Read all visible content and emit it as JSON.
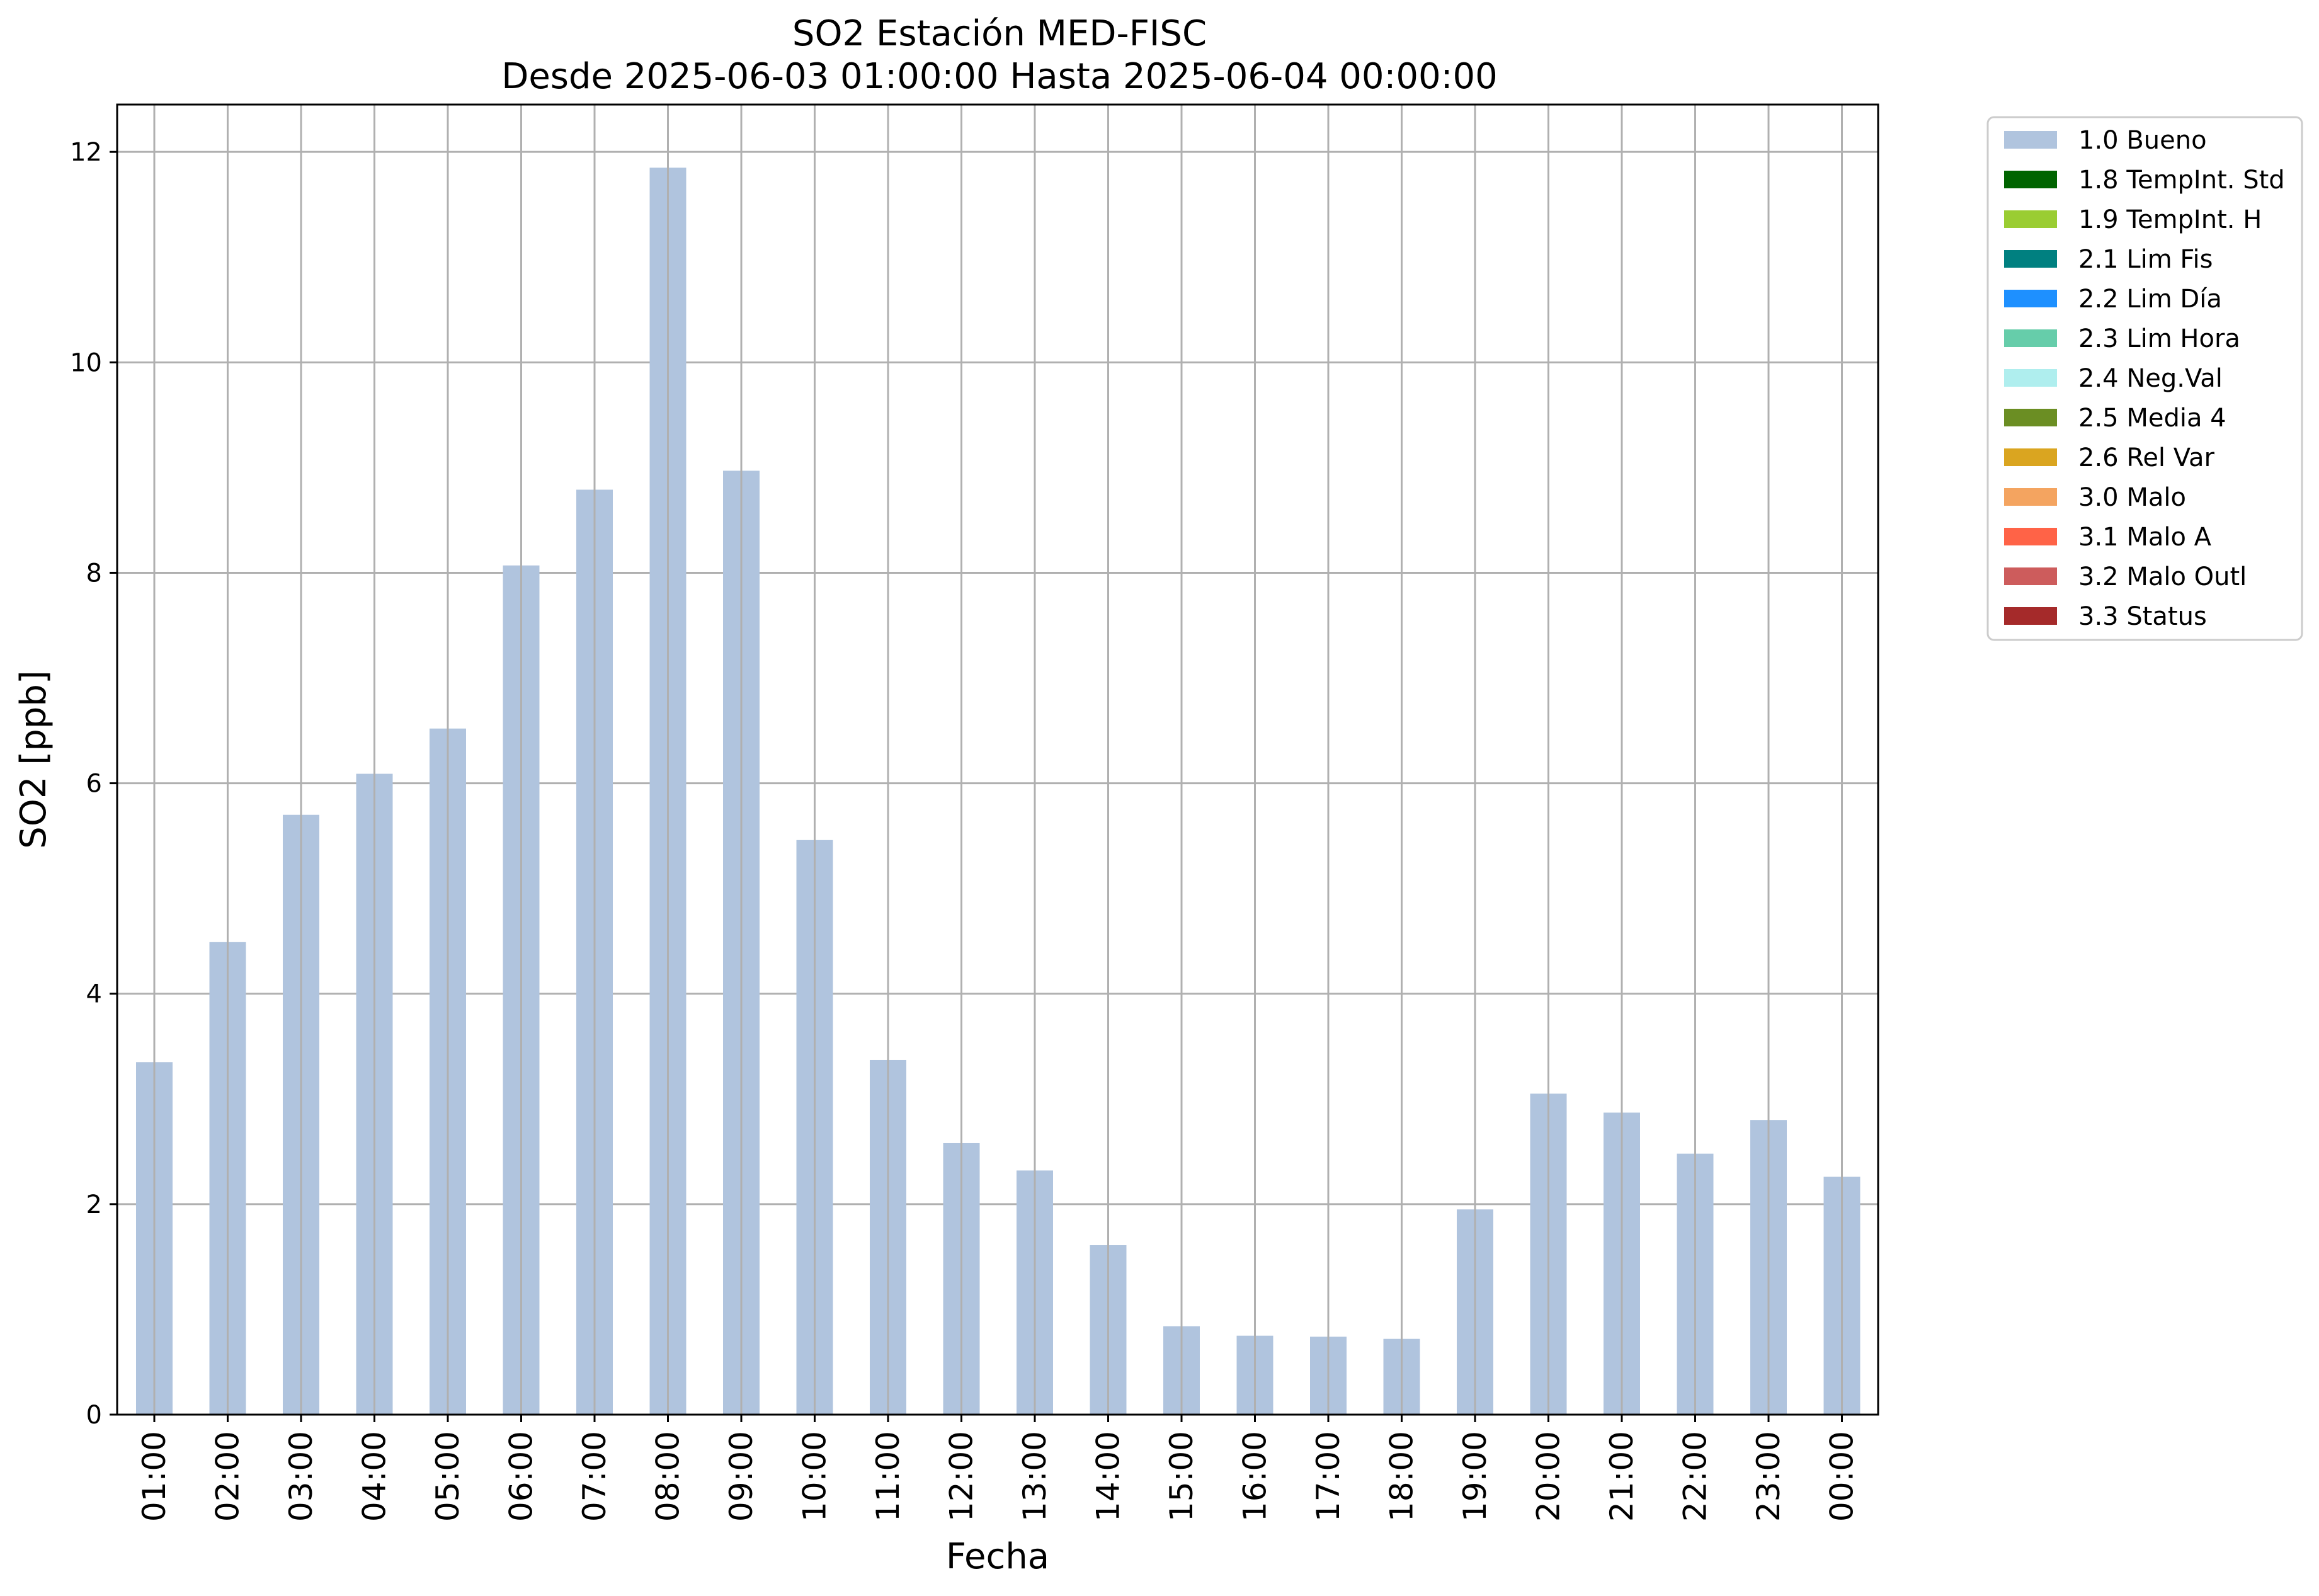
{
  "chart_data": {
    "type": "bar",
    "title": "SO2 Estación MED-FISC",
    "subtitle": "Desde 2025-06-03 01:00:00 Hasta 2025-06-04 00:00:00",
    "xlabel": "Fecha",
    "ylabel": "SO2 [ppb]",
    "ylim": [
      0,
      12.45
    ],
    "yticks": [
      0,
      2,
      4,
      6,
      8,
      10,
      12
    ],
    "grid": true,
    "legend_position": "outside-right",
    "categories": [
      "01:00",
      "02:00",
      "03:00",
      "04:00",
      "05:00",
      "06:00",
      "07:00",
      "08:00",
      "09:00",
      "10:00",
      "11:00",
      "12:00",
      "13:00",
      "14:00",
      "15:00",
      "16:00",
      "17:00",
      "18:00",
      "19:00",
      "20:00",
      "21:00",
      "22:00",
      "23:00",
      "00:00"
    ],
    "series": [
      {
        "name": "1.0 Bueno",
        "color": "#b0c4de",
        "values": [
          3.35,
          4.49,
          5.7,
          6.09,
          6.52,
          8.07,
          8.79,
          11.85,
          8.97,
          5.46,
          3.37,
          2.58,
          2.32,
          1.61,
          0.84,
          0.75,
          0.74,
          0.72,
          1.95,
          3.05,
          2.87,
          2.48,
          2.8,
          2.26
        ]
      }
    ],
    "legend": [
      {
        "label": "1.0 Bueno",
        "color": "#b0c4de"
      },
      {
        "label": "1.8 TempInt. Std",
        "color": "#006400"
      },
      {
        "label": "1.9 TempInt. H",
        "color": "#9acd32"
      },
      {
        "label": "2.1 Lim Fis",
        "color": "#008080"
      },
      {
        "label": "2.2 Lim Día",
        "color": "#1e90ff"
      },
      {
        "label": "2.3 Lim Hora",
        "color": "#66cdaa"
      },
      {
        "label": "2.4 Neg.Val",
        "color": "#afeeee"
      },
      {
        "label": "2.5 Media 4",
        "color": "#6b8e23"
      },
      {
        "label": "2.6 Rel Var",
        "color": "#daa520"
      },
      {
        "label": "3.0 Malo",
        "color": "#f4a460"
      },
      {
        "label": "3.1 Malo A",
        "color": "#ff6347"
      },
      {
        "label": "3.2 Malo Outl",
        "color": "#cd5c5c"
      },
      {
        "label": "3.3 Status",
        "color": "#a52a2a"
      }
    ]
  }
}
